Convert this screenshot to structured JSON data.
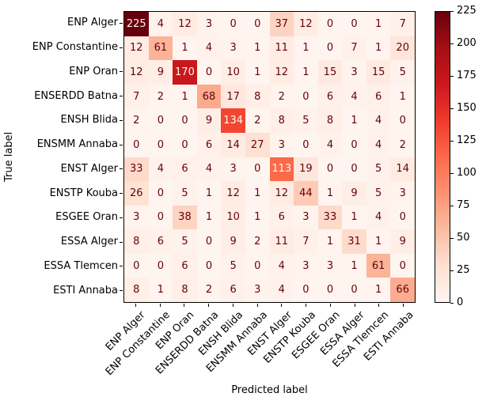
{
  "chart_data": {
    "type": "heatmap",
    "subtype": "confusion-matrix",
    "xlabel": "Predicted label",
    "ylabel": "True label",
    "categories": [
      "ENP Alger",
      "ENP Constantine",
      "ENP Oran",
      "ENSERDD Batna",
      "ENSH Blida",
      "ENSMM Annaba",
      "ENST Alger",
      "ENSTP Kouba",
      "ESGEE Oran",
      "ESSA Alger",
      "ESSA Tlemcen",
      "ESTI Annaba"
    ],
    "matrix": [
      [
        225,
        4,
        12,
        3,
        0,
        0,
        37,
        12,
        0,
        0,
        1,
        7
      ],
      [
        12,
        61,
        1,
        4,
        3,
        1,
        11,
        1,
        0,
        7,
        1,
        20
      ],
      [
        12,
        9,
        170,
        0,
        10,
        1,
        12,
        1,
        15,
        3,
        15,
        5
      ],
      [
        7,
        2,
        1,
        68,
        17,
        8,
        2,
        0,
        6,
        4,
        6,
        1
      ],
      [
        2,
        0,
        0,
        9,
        134,
        2,
        8,
        5,
        8,
        1,
        4,
        0
      ],
      [
        0,
        0,
        0,
        6,
        14,
        27,
        3,
        0,
        4,
        0,
        4,
        2
      ],
      [
        33,
        4,
        6,
        4,
        3,
        0,
        113,
        19,
        0,
        0,
        5,
        14
      ],
      [
        26,
        0,
        5,
        1,
        12,
        1,
        12,
        44,
        1,
        9,
        5,
        3
      ],
      [
        3,
        0,
        38,
        1,
        10,
        1,
        6,
        3,
        33,
        1,
        4,
        0
      ],
      [
        8,
        6,
        5,
        0,
        9,
        2,
        11,
        7,
        1,
        31,
        1,
        9
      ],
      [
        0,
        0,
        6,
        0,
        5,
        0,
        4,
        3,
        3,
        1,
        61,
        0
      ],
      [
        8,
        1,
        8,
        2,
        6,
        3,
        4,
        0,
        0,
        0,
        1,
        66
      ]
    ],
    "vmin": 0,
    "vmax": 225,
    "colorbar_ticks": [
      0,
      25,
      50,
      75,
      100,
      125,
      150,
      175,
      200,
      225
    ],
    "colormap": "Reds",
    "colormap_stops": [
      "#fff5f0",
      "#fee0d2",
      "#fcbba1",
      "#fc9272",
      "#fb6a4a",
      "#ef3b2c",
      "#cb181d",
      "#a50f15",
      "#67000d"
    ],
    "annotation_text_threshold": 112.5,
    "annotation_color_on_dark": "#fff5f0",
    "annotation_color_on_light": "#67000d",
    "axis_color": "#000000",
    "legend_position": "right-colorbar",
    "grid": false
  }
}
